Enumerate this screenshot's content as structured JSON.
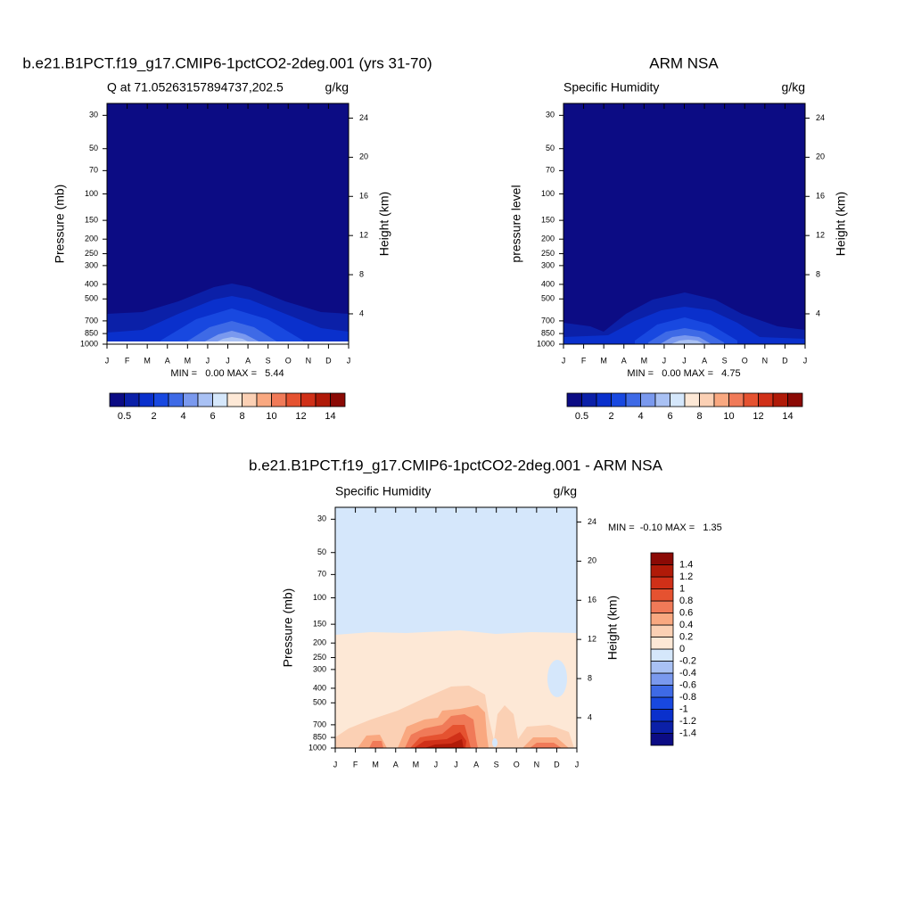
{
  "chart_data": [
    {
      "type": "contour",
      "title": "b.e21.B1PCT.f19_g17.CMIP6-1pctCO2-2deg.001 (yrs 31-70)",
      "left_string": "Q at 71.05263157894737,202.5",
      "right_string": "g/kg",
      "ylabel": "Pressure (mb)",
      "y2label": "Height (km)",
      "categories": [
        "J",
        "F",
        "M",
        "A",
        "M",
        "J",
        "J",
        "A",
        "S",
        "O",
        "N",
        "D",
        "J"
      ],
      "yscale": "log",
      "ylim": [
        1000,
        25
      ],
      "yticks": [
        30,
        50,
        70,
        100,
        150,
        200,
        250,
        300,
        400,
        500,
        700,
        850,
        1000
      ],
      "y2lim": [
        0.9,
        25.5
      ],
      "y2ticks": [
        4,
        8,
        12,
        16,
        20,
        24
      ],
      "stats": "MIN =   0.00 MAX =   5.44",
      "colorbar": {
        "orientation": "horizontal",
        "levels": [
          0.5,
          null,
          2,
          null,
          4,
          null,
          6,
          null,
          8,
          null,
          10,
          null,
          12,
          null,
          14
        ],
        "colors": [
          "#0c0c84",
          "#0b20a8",
          "#0a30cc",
          "#1848e0",
          "#3e6ae6",
          "#7a99ee",
          "#a9c1f4",
          "#d5e7fb",
          "#fde8d6",
          "#fbd0b4",
          "#f9a880",
          "#f07a58",
          "#e55230",
          "#d03018",
          "#b01a08",
          "#8b0a05"
        ]
      }
    },
    {
      "type": "contour",
      "title": "ARM NSA",
      "left_string": "Specific Humidity",
      "right_string": "g/kg",
      "ylabel": "pressure level",
      "y2label": "Height (km)",
      "categories": [
        "J",
        "F",
        "M",
        "A",
        "M",
        "J",
        "J",
        "A",
        "S",
        "O",
        "N",
        "D",
        "J"
      ],
      "yscale": "log",
      "ylim": [
        1000,
        25
      ],
      "yticks": [
        30,
        50,
        70,
        100,
        150,
        200,
        250,
        300,
        400,
        500,
        700,
        850,
        1000
      ],
      "y2lim": [
        0.9,
        25.5
      ],
      "y2ticks": [
        4,
        8,
        12,
        16,
        20,
        24
      ],
      "stats": "MIN =   0.00 MAX =   4.75",
      "colorbar": {
        "orientation": "horizontal",
        "levels": [
          0.5,
          null,
          2,
          null,
          4,
          null,
          6,
          null,
          8,
          null,
          10,
          null,
          12,
          null,
          14
        ],
        "colors": [
          "#0c0c84",
          "#0b20a8",
          "#0a30cc",
          "#1848e0",
          "#3e6ae6",
          "#7a99ee",
          "#a9c1f4",
          "#d5e7fb",
          "#fde8d6",
          "#fbd0b4",
          "#f9a880",
          "#f07a58",
          "#e55230",
          "#d03018",
          "#b01a08",
          "#8b0a05"
        ]
      }
    },
    {
      "type": "contour",
      "title": "b.e21.B1PCT.f19_g17.CMIP6-1pctCO2-2deg.001 - ARM NSA",
      "left_string": "Specific Humidity",
      "right_string": "g/kg",
      "ylabel": "Pressure (mb)",
      "y2label": "Height (km)",
      "categories": [
        "J",
        "F",
        "M",
        "A",
        "M",
        "J",
        "J",
        "A",
        "S",
        "O",
        "N",
        "D",
        "J"
      ],
      "yscale": "log",
      "ylim": [
        1000,
        25
      ],
      "yticks": [
        30,
        50,
        70,
        100,
        150,
        200,
        250,
        300,
        400,
        500,
        700,
        850,
        1000
      ],
      "y2lim": [
        0.9,
        25.5
      ],
      "y2ticks": [
        4,
        8,
        12,
        16,
        20,
        24
      ],
      "stats": "MIN =  -0.10 MAX =   1.35",
      "colorbar": {
        "orientation": "vertical",
        "levels": [
          -1.4,
          -1.2,
          -1,
          -0.8,
          -0.6,
          -0.4,
          -0.2,
          0,
          0.2,
          0.4,
          0.6,
          0.8,
          1,
          1.2,
          1.4
        ],
        "colors": [
          "#0c0c84",
          "#0b20a8",
          "#0a30cc",
          "#1848e0",
          "#3e6ae6",
          "#7a99ee",
          "#a9c1f4",
          "#d5e7fb",
          "#fde8d6",
          "#fbd0b4",
          "#f9a880",
          "#f07a58",
          "#e55230",
          "#d03018",
          "#b01a08",
          "#8b0a05"
        ]
      }
    }
  ]
}
